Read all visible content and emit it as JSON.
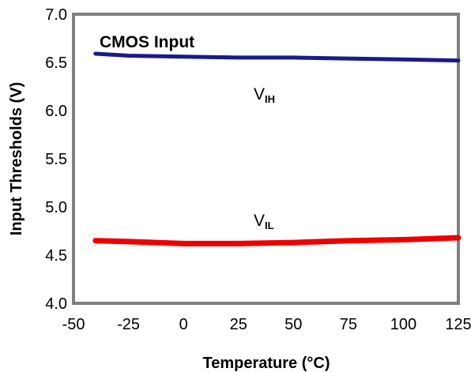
{
  "chart_data": {
    "type": "line",
    "title": "",
    "annotation": "CMOS Input",
    "xlabel": "Temperature (°C)",
    "ylabel": "Input Thresholds (V)",
    "xlim": [
      -50,
      125
    ],
    "ylim": [
      4.0,
      7.0
    ],
    "xticks": [
      -50,
      -25,
      0,
      25,
      50,
      75,
      100,
      125
    ],
    "yticks": [
      4.0,
      4.5,
      5.0,
      5.5,
      6.0,
      6.5,
      7.0
    ],
    "xtick_labels": [
      "-50",
      "-25",
      "0",
      "25",
      "50",
      "75",
      "100",
      "125"
    ],
    "ytick_labels": [
      "4.0",
      "4.5",
      "5.0",
      "5.5",
      "6.0",
      "6.5",
      "7.0"
    ],
    "grid": false,
    "series": [
      {
        "label_main": "V",
        "label_sub": "IH",
        "color": "#1a1a8c",
        "x": [
          -40,
          -25,
          0,
          25,
          50,
          75,
          100,
          125
        ],
        "y": [
          6.59,
          6.57,
          6.56,
          6.55,
          6.55,
          6.54,
          6.53,
          6.52
        ]
      },
      {
        "label_main": "V",
        "label_sub": "IL",
        "color": "#ee0000",
        "x": [
          -40,
          -25,
          0,
          25,
          50,
          75,
          100,
          125
        ],
        "y": [
          4.65,
          4.64,
          4.62,
          4.62,
          4.63,
          4.65,
          4.66,
          4.68
        ]
      }
    ]
  }
}
